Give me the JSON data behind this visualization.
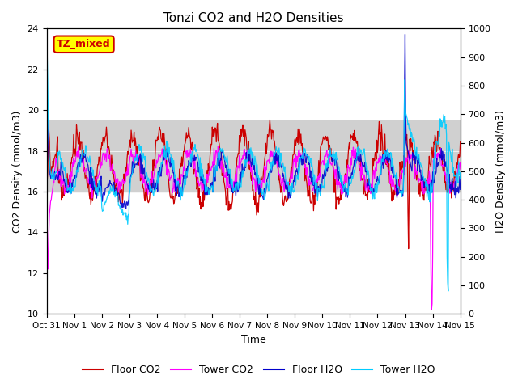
{
  "title": "Tonzi CO2 and H2O Densities",
  "xlabel": "Time",
  "ylabel_left": "CO2 Density (mmol/m3)",
  "ylabel_right": "H2O Density (mmol/m3)",
  "ylim_left": [
    10,
    24
  ],
  "ylim_right": [
    0,
    1000
  ],
  "yticks_left": [
    10,
    12,
    14,
    16,
    18,
    20,
    22,
    24
  ],
  "yticks_right": [
    0,
    100,
    200,
    300,
    400,
    500,
    600,
    700,
    800,
    900,
    1000
  ],
  "xtick_labels": [
    "Oct 31",
    "Nov 1",
    "Nov 2",
    "Nov 3",
    "Nov 4",
    "Nov 5",
    "Nov 6",
    "Nov 7",
    "Nov 8",
    "Nov 9",
    "Nov 10",
    "Nov 11",
    "Nov 12",
    "Nov 13",
    "Nov 14",
    "Nov 15"
  ],
  "annotation_text": "TZ_mixed",
  "annotation_color": "#cc0000",
  "annotation_box_color": "#ffff00",
  "annotation_box_edge": "#cc0000",
  "colors": {
    "floor_co2": "#cc0000",
    "tower_co2": "#ff00ff",
    "floor_h2o": "#0000cc",
    "tower_h2o": "#00ccff"
  },
  "legend_labels": [
    "Floor CO2",
    "Tower CO2",
    "Floor H2O",
    "Tower H2O"
  ],
  "shaded_region_color": "#d0d0d0",
  "shaded_ylim": [
    16.0,
    19.5
  ],
  "background_color": "#ffffff",
  "n_days": 15,
  "points_per_day": 48
}
